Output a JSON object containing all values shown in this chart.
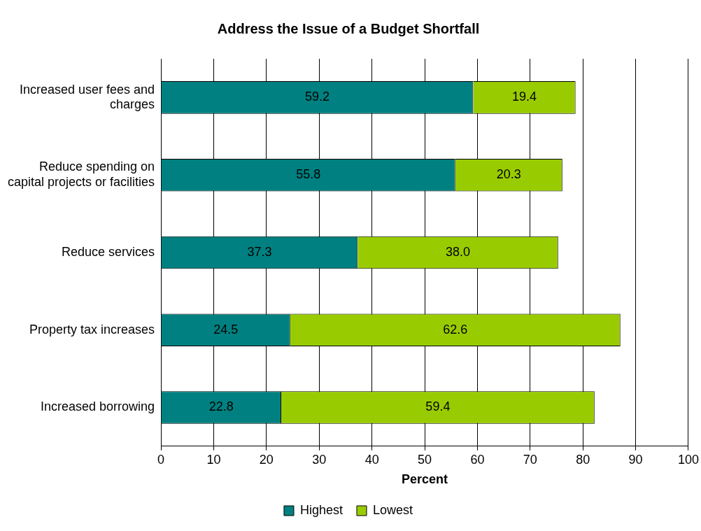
{
  "chart_data": {
    "type": "bar",
    "orientation": "horizontal",
    "stacked": true,
    "title": "Address the Issue of a Budget Shortfall",
    "xlabel": "Percent",
    "categories": [
      "Increased user fees and charges",
      "Reduce spending on capital projects or facilities",
      "Reduce services",
      "Property tax increases",
      "Increased borrowing"
    ],
    "series": [
      {
        "name": "Highest",
        "color": "#008080",
        "values": [
          59.2,
          55.8,
          37.3,
          24.5,
          22.8
        ],
        "value_labels": [
          "59.2",
          "55.8",
          "37.3",
          "24.5",
          "22.8"
        ]
      },
      {
        "name": "Lowest",
        "color": "#99cc00",
        "values": [
          19.4,
          20.3,
          38.0,
          62.6,
          59.4
        ],
        "value_labels": [
          "19.4",
          "20.3",
          "38.0",
          "62.6",
          "59.4"
        ]
      }
    ],
    "xlim": [
      0,
      100
    ],
    "xticks": [
      0,
      10,
      20,
      30,
      40,
      50,
      60,
      70,
      80,
      90,
      100
    ],
    "grid": "x",
    "legend": "bottom"
  }
}
